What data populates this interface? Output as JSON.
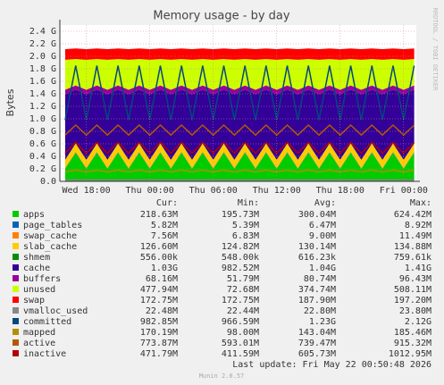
{
  "chart_data": {
    "type": "stacked-area",
    "title": "Memory usage - by day",
    "y_label": "Bytes",
    "watermark": "RRDTOOL / TOBI OETIKER",
    "legend_columns": [
      "Cur:",
      "Min:",
      "Avg:",
      "Max:"
    ],
    "last_update": "Last update: Fri May 22 00:50:48 2026",
    "footer": "Munin 2.0.57",
    "grid": true,
    "xlim": [
      15.5,
      49.2
    ],
    "xticks": [
      {
        "value": 18,
        "label": "Wed 18:00"
      },
      {
        "value": 24,
        "label": "Thu 00:00"
      },
      {
        "value": 30,
        "label": "Thu 06:00"
      },
      {
        "value": 36,
        "label": "Thu 12:00"
      },
      {
        "value": 42,
        "label": "Thu 18:00"
      },
      {
        "value": 48,
        "label": "Fri 00:00"
      }
    ],
    "ylim": [
      0,
      2.5
    ],
    "yticks": [
      {
        "value": 0,
        "label": "0.0"
      },
      {
        "value": 0.2,
        "label": "0.2 G"
      },
      {
        "value": 0.4,
        "label": "0.4 G"
      },
      {
        "value": 0.6,
        "label": "0.6 G"
      },
      {
        "value": 0.8,
        "label": "0.8 G"
      },
      {
        "value": 1.0,
        "label": "1.0 G"
      },
      {
        "value": 1.2,
        "label": "1.2 G"
      },
      {
        "value": 1.4,
        "label": "1.4 G"
      },
      {
        "value": 1.6,
        "label": "1.6 G"
      },
      {
        "value": 1.8,
        "label": "1.8 G"
      },
      {
        "value": 2.0,
        "label": "2.0 G"
      },
      {
        "value": 2.2,
        "label": "2.2 G"
      },
      {
        "value": 2.4,
        "label": "2.4 G"
      }
    ],
    "x": [
      16,
      17,
      18,
      19,
      20,
      21,
      22,
      23,
      24,
      25,
      26,
      27,
      28,
      29,
      30,
      31,
      32,
      33,
      34,
      35,
      36,
      37,
      38,
      39,
      40,
      41,
      42,
      43,
      44,
      45,
      46,
      47,
      48,
      49
    ],
    "series": [
      {
        "name": "apps",
        "color": "#00CC00",
        "kind": "area",
        "stats": [
          "218.63M",
          "195.73M",
          "300.04M",
          "624.42M"
        ],
        "values": [
          0.2,
          0.46,
          0.2,
          0.46,
          0.2,
          0.46,
          0.2,
          0.46,
          0.2,
          0.46,
          0.2,
          0.46,
          0.2,
          0.46,
          0.2,
          0.46,
          0.2,
          0.46,
          0.2,
          0.46,
          0.2,
          0.46,
          0.2,
          0.46,
          0.2,
          0.46,
          0.2,
          0.46,
          0.2,
          0.46,
          0.2,
          0.46,
          0.2,
          0.46
        ]
      },
      {
        "name": "page_tables",
        "color": "#0066B3",
        "kind": "area",
        "stats": [
          "5.82M",
          "5.39M",
          "6.47M",
          "8.92M"
        ],
        "values": [
          0.006,
          0.006,
          0.006,
          0.006,
          0.006,
          0.006,
          0.006,
          0.006,
          0.006,
          0.006,
          0.006,
          0.006,
          0.006,
          0.006,
          0.006,
          0.006,
          0.006,
          0.006,
          0.006,
          0.006,
          0.006,
          0.006,
          0.006,
          0.006,
          0.006,
          0.006,
          0.006,
          0.006,
          0.006,
          0.006,
          0.006,
          0.006,
          0.006,
          0.006
        ]
      },
      {
        "name": "swap_cache",
        "color": "#FF8000",
        "kind": "area",
        "stats": [
          "7.56M",
          "6.83M",
          "9.00M",
          "11.49M"
        ],
        "values": [
          0.008,
          0.008,
          0.008,
          0.008,
          0.008,
          0.008,
          0.008,
          0.008,
          0.008,
          0.008,
          0.008,
          0.008,
          0.008,
          0.008,
          0.008,
          0.008,
          0.008,
          0.008,
          0.008,
          0.008,
          0.008,
          0.008,
          0.008,
          0.008,
          0.008,
          0.008,
          0.008,
          0.008,
          0.008,
          0.008,
          0.008,
          0.008,
          0.008,
          0.008
        ]
      },
      {
        "name": "slab_cache",
        "color": "#FFCC00",
        "kind": "area",
        "stats": [
          "126.60M",
          "124.82M",
          "130.14M",
          "134.88M"
        ],
        "values": [
          0.13,
          0.13,
          0.13,
          0.13,
          0.13,
          0.13,
          0.13,
          0.13,
          0.13,
          0.13,
          0.13,
          0.13,
          0.13,
          0.13,
          0.13,
          0.13,
          0.13,
          0.13,
          0.13,
          0.13,
          0.13,
          0.13,
          0.13,
          0.13,
          0.13,
          0.13,
          0.13,
          0.13,
          0.13,
          0.13,
          0.13,
          0.13,
          0.13,
          0.13
        ]
      },
      {
        "name": "shmem",
        "color": "#008F00",
        "kind": "area",
        "stats": [
          "556.00k",
          "548.00k",
          "616.23k",
          "759.61k"
        ],
        "values": [
          0.0006,
          0.0006,
          0.0006,
          0.0006,
          0.0006,
          0.0006,
          0.0006,
          0.0006,
          0.0006,
          0.0006,
          0.0006,
          0.0006,
          0.0006,
          0.0006,
          0.0006,
          0.0006,
          0.0006,
          0.0006,
          0.0006,
          0.0006,
          0.0006,
          0.0006,
          0.0006,
          0.0006,
          0.0006,
          0.0006,
          0.0006,
          0.0006,
          0.0006,
          0.0006,
          0.0006,
          0.0006,
          0.0006,
          0.0006
        ]
      },
      {
        "name": "cache",
        "color": "#330099",
        "kind": "area",
        "stats": [
          "1.03G",
          "982.52M",
          "1.04G",
          "1.41G"
        ],
        "values": [
          1.05,
          0.86,
          1.05,
          0.86,
          1.05,
          0.86,
          1.05,
          0.86,
          1.05,
          0.86,
          1.05,
          0.86,
          1.05,
          0.86,
          1.05,
          0.86,
          1.05,
          0.86,
          1.05,
          0.86,
          1.05,
          0.86,
          1.05,
          0.86,
          1.05,
          0.86,
          1.05,
          0.86,
          1.05,
          0.86,
          1.05,
          0.86,
          1.05,
          0.86
        ]
      },
      {
        "name": "buffers",
        "color": "#990099",
        "kind": "area",
        "stats": [
          "68.16M",
          "51.79M",
          "80.74M",
          "96.43M"
        ],
        "values": [
          0.07,
          0.07,
          0.07,
          0.07,
          0.07,
          0.07,
          0.07,
          0.07,
          0.07,
          0.07,
          0.07,
          0.07,
          0.07,
          0.07,
          0.07,
          0.07,
          0.07,
          0.07,
          0.07,
          0.07,
          0.07,
          0.07,
          0.07,
          0.07,
          0.07,
          0.07,
          0.07,
          0.07,
          0.07,
          0.07,
          0.07,
          0.07,
          0.07,
          0.07
        ]
      },
      {
        "name": "unused",
        "color": "#CCFF00",
        "kind": "area",
        "stats": [
          "477.94M",
          "72.68M",
          "374.74M",
          "508.11M"
        ],
        "values": [
          0.48,
          0.42,
          0.48,
          0.42,
          0.48,
          0.42,
          0.48,
          0.42,
          0.48,
          0.42,
          0.48,
          0.42,
          0.48,
          0.42,
          0.48,
          0.42,
          0.48,
          0.42,
          0.48,
          0.42,
          0.48,
          0.42,
          0.48,
          0.42,
          0.48,
          0.42,
          0.48,
          0.42,
          0.48,
          0.42,
          0.48,
          0.42,
          0.48,
          0.42
        ]
      },
      {
        "name": "swap",
        "color": "#FF0000",
        "kind": "area",
        "stats": [
          "172.75M",
          "172.75M",
          "187.90M",
          "197.20M"
        ],
        "values": [
          0.17,
          0.17,
          0.17,
          0.17,
          0.17,
          0.17,
          0.17,
          0.17,
          0.17,
          0.17,
          0.17,
          0.17,
          0.17,
          0.17,
          0.17,
          0.17,
          0.17,
          0.17,
          0.17,
          0.17,
          0.17,
          0.17,
          0.17,
          0.17,
          0.17,
          0.17,
          0.17,
          0.17,
          0.17,
          0.17,
          0.17,
          0.17,
          0.17,
          0.17
        ]
      },
      {
        "name": "vmalloc_used",
        "color": "#888888",
        "kind": "line",
        "stats": [
          "22.48M",
          "22.44M",
          "22.80M",
          "23.80M"
        ],
        "values": [
          0.022,
          0.022,
          0.022,
          0.022,
          0.022,
          0.022,
          0.022,
          0.022,
          0.022,
          0.022,
          0.022,
          0.022,
          0.022,
          0.022,
          0.022,
          0.022,
          0.022,
          0.022,
          0.022,
          0.022,
          0.022,
          0.022,
          0.022,
          0.022,
          0.022,
          0.022,
          0.022,
          0.022,
          0.022,
          0.022,
          0.022,
          0.022,
          0.022,
          0.022
        ]
      },
      {
        "name": "committed",
        "color": "#00487D",
        "kind": "line",
        "stats": [
          "982.85M",
          "966.59M",
          "1.23G",
          "2.12G"
        ],
        "values": [
          0.98,
          1.85,
          0.98,
          1.85,
          0.98,
          1.85,
          0.98,
          1.85,
          0.98,
          1.85,
          0.98,
          1.85,
          0.98,
          1.85,
          0.98,
          1.85,
          0.98,
          1.85,
          0.98,
          1.85,
          0.98,
          1.85,
          0.98,
          1.85,
          0.98,
          1.85,
          0.98,
          1.85,
          0.98,
          1.85,
          0.98,
          1.85,
          0.98,
          1.85
        ]
      },
      {
        "name": "mapped",
        "color": "#B38F00",
        "kind": "line",
        "stats": [
          "170.19M",
          "98.00M",
          "143.04M",
          "185.46M"
        ],
        "values": [
          0.15,
          0.18,
          0.15,
          0.18,
          0.15,
          0.18,
          0.15,
          0.18,
          0.15,
          0.18,
          0.15,
          0.18,
          0.15,
          0.18,
          0.15,
          0.18,
          0.15,
          0.18,
          0.15,
          0.18,
          0.15,
          0.18,
          0.15,
          0.18,
          0.15,
          0.18,
          0.15,
          0.18,
          0.15,
          0.18,
          0.15,
          0.18,
          0.15,
          0.18
        ]
      },
      {
        "name": "active",
        "color": "#B35A00",
        "kind": "line",
        "stats": [
          "773.87M",
          "593.01M",
          "739.47M",
          "915.32M"
        ],
        "values": [
          0.74,
          0.9,
          0.74,
          0.9,
          0.74,
          0.9,
          0.74,
          0.9,
          0.74,
          0.9,
          0.74,
          0.9,
          0.74,
          0.9,
          0.74,
          0.9,
          0.74,
          0.9,
          0.74,
          0.9,
          0.74,
          0.9,
          0.74,
          0.9,
          0.74,
          0.9,
          0.74,
          0.9,
          0.74,
          0.9,
          0.74,
          0.9,
          0.74,
          0.9
        ]
      },
      {
        "name": "inactive",
        "color": "#B30000",
        "kind": "line",
        "stats": [
          "471.79M",
          "411.59M",
          "605.73M",
          "1012.95M"
        ],
        "values": [
          0.45,
          0.62,
          0.45,
          0.62,
          0.45,
          0.62,
          0.45,
          0.62,
          0.45,
          0.62,
          0.45,
          0.62,
          0.45,
          0.62,
          0.45,
          0.62,
          0.45,
          0.62,
          0.45,
          0.62,
          0.45,
          0.62,
          0.45,
          0.62,
          0.45,
          0.62,
          0.45,
          0.62,
          0.45,
          0.62,
          0.45,
          0.62,
          0.45,
          0.62
        ]
      }
    ]
  }
}
